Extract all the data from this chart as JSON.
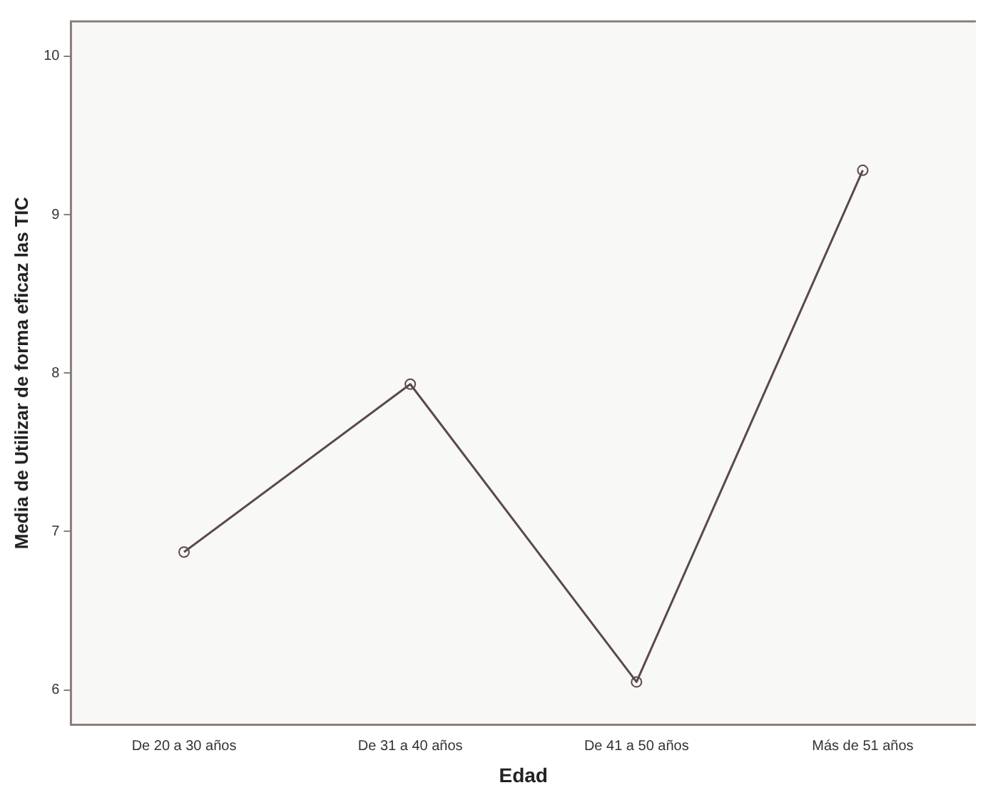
{
  "chart_data": {
    "type": "line",
    "xlabel": "Edad",
    "ylabel": "Media de Utilizar de forma eficaz las TIC",
    "categories": [
      "De 20 a 30 años",
      "De 31 a 40 años",
      "De 41 a 50 años",
      "Más de 51 años"
    ],
    "series": [
      {
        "color": "#5a4a48",
        "values": [
          6.87,
          7.93,
          6.05,
          9.28
        ]
      }
    ],
    "ylim": [
      5.78,
      10.22
    ],
    "yticks": [
      6,
      7,
      8,
      9,
      10
    ],
    "grid": false,
    "legend": false,
    "marker": "circle",
    "line_style": "solid"
  }
}
